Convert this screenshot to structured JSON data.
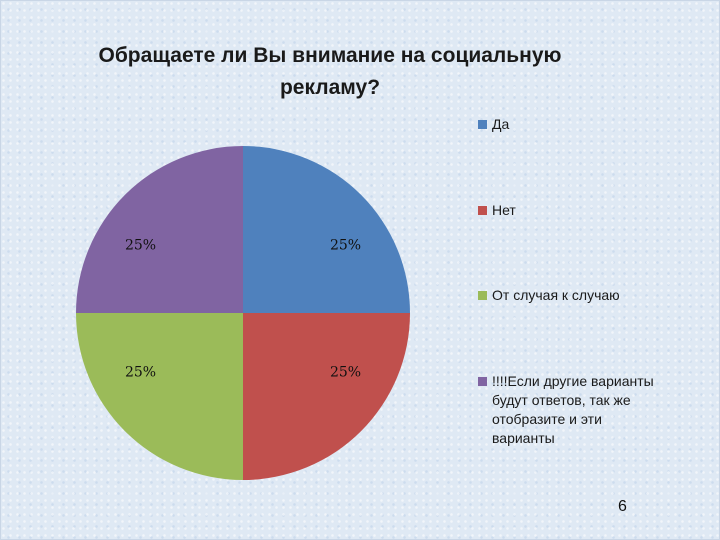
{
  "chart_data": {
    "type": "pie",
    "title_lines": [
      "Обращаете ли Вы внимание на социальную",
      "рекламу?"
    ],
    "slices": [
      {
        "name": "Да",
        "value": 25,
        "label": "25%",
        "color": "#4f81bd"
      },
      {
        "name": "Нет",
        "value": 25,
        "label": "25%",
        "color": "#c0504d"
      },
      {
        "name": "От случая к случаю",
        "value": 25,
        "label": "25%",
        "color": "#9bbb59"
      },
      {
        "name": "!!!!Если другие варианты будут ответов, так же отобразите и эти варианты",
        "value": 25,
        "label": "25%",
        "color": "#8064a2"
      }
    ],
    "legend_position": "right"
  },
  "legend_lines": [
    [
      "Да"
    ],
    [
      "Нет"
    ],
    [
      "От случая к случаю"
    ],
    [
      "!!!!Если другие варианты",
      "будут ответов, так же",
      "отобразите и эти",
      "варианты"
    ]
  ],
  "page_number": "6"
}
